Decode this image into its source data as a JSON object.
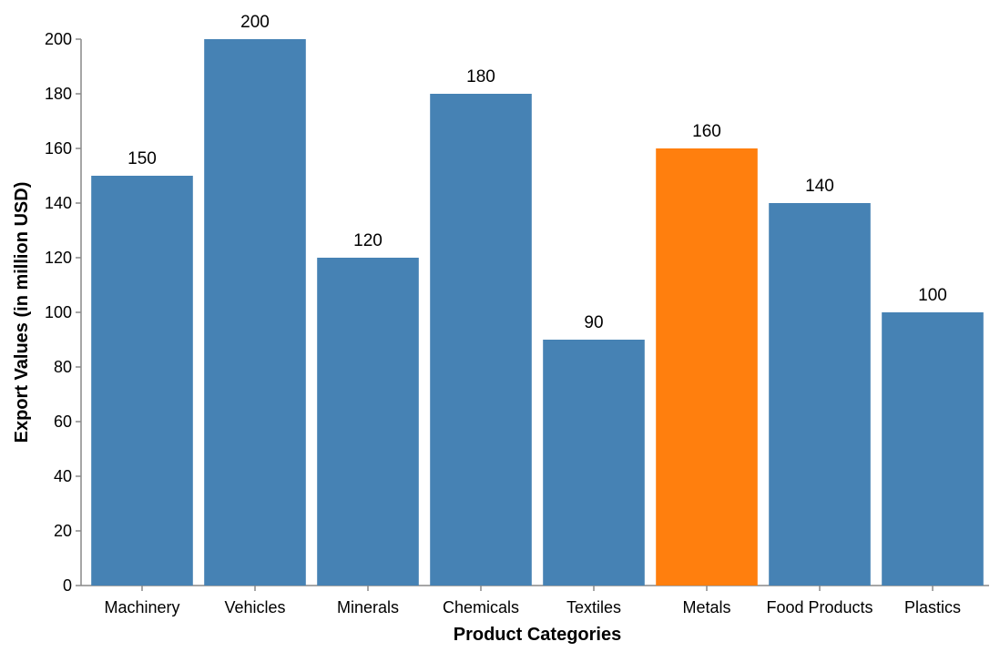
{
  "chart_data": {
    "type": "bar",
    "categories": [
      "Machinery",
      "Vehicles",
      "Minerals",
      "Chemicals",
      "Textiles",
      "Metals",
      "Food Products",
      "Plastics"
    ],
    "values": [
      150,
      200,
      120,
      180,
      90,
      160,
      140,
      100
    ],
    "bar_colors": [
      "#4682b4",
      "#4682b4",
      "#4682b4",
      "#4682b4",
      "#4682b4",
      "#ff7f0e",
      "#4682b4",
      "#4682b4"
    ],
    "highlighted_category": "Metals",
    "xlabel": "Product Categories",
    "ylabel": "Export Values (in million USD)",
    "ylim": [
      0,
      200
    ],
    "yticks": [
      "0",
      "20",
      "40",
      "60",
      "80",
      "100",
      "120",
      "140",
      "160",
      "180",
      "200"
    ],
    "grid": false,
    "data_labels": true
  }
}
